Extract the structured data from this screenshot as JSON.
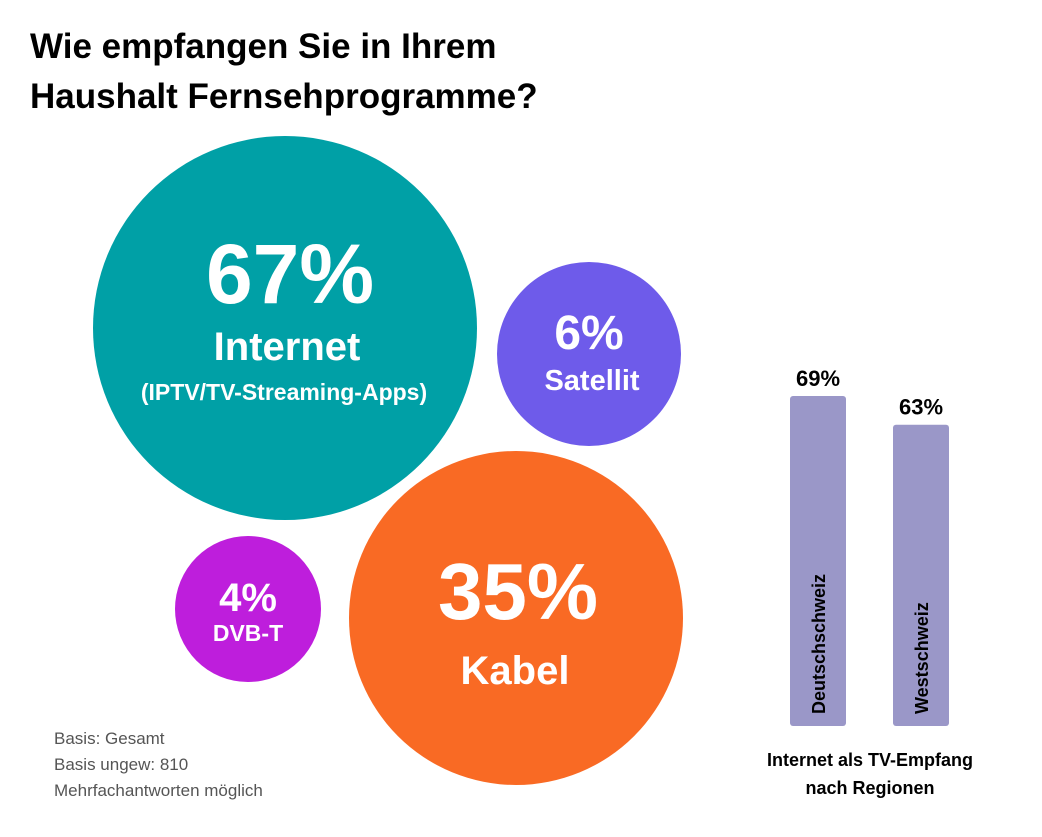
{
  "title": {
    "line1": "Wie empfangen Sie in Ihrem",
    "line2": "Haushalt Fernsehprogramme?"
  },
  "chart_data": [
    {
      "type": "bubble",
      "items": [
        {
          "name": "Internet",
          "sublabel": "(IPTV/TV-Streaming-Apps)",
          "value": 67,
          "value_label": "67%",
          "color": "#00A0A6"
        },
        {
          "name": "Satellit",
          "value": 6,
          "value_label": "6%",
          "color": "#6E5BEA"
        },
        {
          "name": "Kabel",
          "value": 35,
          "value_label": "35%",
          "color": "#F96A24"
        },
        {
          "name": "DVB-T",
          "value": 4,
          "value_label": "4%",
          "color": "#BE1EDC"
        }
      ]
    },
    {
      "type": "bar",
      "title": "Internet als TV-Empfang nach Regionen",
      "categories": [
        "Deutschschweiz",
        "Westschweiz"
      ],
      "values": [
        69,
        63
      ],
      "value_labels": [
        "69%",
        "63%"
      ],
      "color": "#9A97C8"
    }
  ],
  "caption": {
    "line1": "Internet als TV-Empfang",
    "line2": "nach Regionen"
  },
  "footnote": {
    "line1": "Basis: Gesamt",
    "line2": "Basis ungew: 810",
    "line3": "Mehrfachantworten möglich"
  }
}
